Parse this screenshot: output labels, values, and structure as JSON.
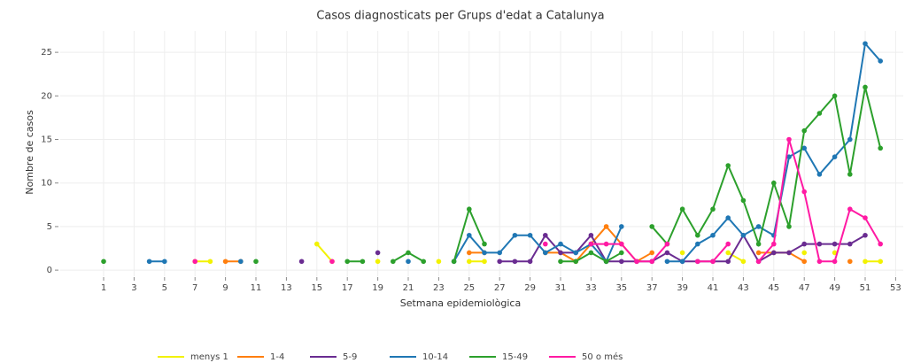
{
  "chart_data": {
    "type": "line",
    "title": "Casos diagnosticats per Grups d'edat a Catalunya",
    "x_label": "Setmana epidemiològica",
    "y_label": "Nombre de casos",
    "x": [
      1,
      2,
      3,
      4,
      5,
      6,
      7,
      8,
      9,
      10,
      11,
      12,
      13,
      14,
      15,
      16,
      17,
      18,
      19,
      20,
      21,
      22,
      23,
      24,
      25,
      26,
      27,
      28,
      29,
      30,
      31,
      32,
      33,
      34,
      35,
      36,
      37,
      38,
      39,
      40,
      41,
      42,
      43,
      44,
      45,
      46,
      47,
      48,
      49,
      50,
      51,
      52
    ],
    "xlim": [
      -1.85,
      53.5
    ],
    "xticks": [
      1,
      3,
      5,
      7,
      9,
      11,
      13,
      15,
      17,
      19,
      21,
      23,
      25,
      27,
      29,
      31,
      33,
      35,
      37,
      39,
      41,
      43,
      45,
      47,
      49,
      51,
      53
    ],
    "ylim": [
      -0.7,
      27.45
    ],
    "yticks": [
      0,
      5,
      10,
      15,
      20,
      25
    ],
    "grid": true,
    "legend": "bottom",
    "series": [
      {
        "name": "menys 1",
        "color": "#f2f200",
        "values": [
          null,
          null,
          null,
          null,
          null,
          null,
          1,
          1,
          null,
          null,
          null,
          null,
          null,
          null,
          3,
          1,
          null,
          null,
          1,
          null,
          null,
          null,
          1,
          null,
          1,
          1,
          null,
          null,
          null,
          null,
          null,
          null,
          null,
          null,
          null,
          null,
          null,
          null,
          2,
          null,
          null,
          2,
          1,
          null,
          null,
          null,
          2,
          null,
          2,
          null,
          1,
          1
        ]
      },
      {
        "name": "1-4",
        "color": "#ff7f0e",
        "values": [
          null,
          null,
          null,
          null,
          null,
          null,
          null,
          null,
          1,
          1,
          null,
          null,
          null,
          null,
          null,
          null,
          null,
          null,
          null,
          null,
          null,
          null,
          null,
          null,
          2,
          2,
          null,
          null,
          null,
          2,
          2,
          1,
          3,
          5,
          3,
          1,
          2,
          null,
          null,
          null,
          null,
          null,
          null,
          2,
          2,
          2,
          1,
          null,
          null,
          1,
          null,
          null
        ]
      },
      {
        "name": "5-9",
        "color": "#6a2c91",
        "values": [
          null,
          null,
          null,
          null,
          null,
          null,
          null,
          null,
          null,
          null,
          null,
          null,
          null,
          1,
          null,
          null,
          null,
          null,
          2,
          null,
          null,
          null,
          null,
          null,
          null,
          null,
          1,
          1,
          1,
          4,
          2,
          2,
          4,
          1,
          1,
          1,
          1,
          2,
          1,
          1,
          1,
          1,
          4,
          1,
          2,
          2,
          3,
          3,
          3,
          3,
          4,
          null
        ]
      },
      {
        "name": "10-14",
        "color": "#1f77b4",
        "values": [
          null,
          null,
          null,
          1,
          1,
          null,
          null,
          null,
          null,
          1,
          null,
          null,
          null,
          null,
          null,
          null,
          null,
          null,
          null,
          null,
          1,
          null,
          null,
          1,
          4,
          2,
          2,
          4,
          4,
          2,
          3,
          2,
          3,
          1,
          5,
          null,
          null,
          1,
          1,
          3,
          4,
          6,
          4,
          5,
          4,
          13,
          14,
          11,
          13,
          15,
          26,
          24
        ]
      },
      {
        "name": "15-49",
        "color": "#2ca02c",
        "values": [
          1,
          null,
          null,
          null,
          null,
          null,
          null,
          null,
          null,
          null,
          1,
          null,
          null,
          null,
          null,
          null,
          1,
          1,
          null,
          1,
          2,
          1,
          null,
          1,
          7,
          3,
          null,
          null,
          null,
          null,
          1,
          1,
          2,
          1,
          2,
          null,
          5,
          3,
          7,
          4,
          7,
          12,
          8,
          3,
          10,
          5,
          16,
          18,
          20,
          11,
          21,
          14
        ]
      },
      {
        "name": "50 o més",
        "color": "#ff1aa3",
        "values": [
          null,
          null,
          null,
          null,
          null,
          null,
          1,
          null,
          null,
          null,
          null,
          null,
          null,
          null,
          null,
          1,
          null,
          null,
          null,
          null,
          null,
          null,
          null,
          null,
          null,
          null,
          null,
          null,
          null,
          3,
          null,
          null,
          3,
          3,
          3,
          1,
          1,
          3,
          null,
          1,
          1,
          3,
          null,
          1,
          3,
          15,
          9,
          1,
          1,
          7,
          6,
          3
        ]
      }
    ]
  }
}
